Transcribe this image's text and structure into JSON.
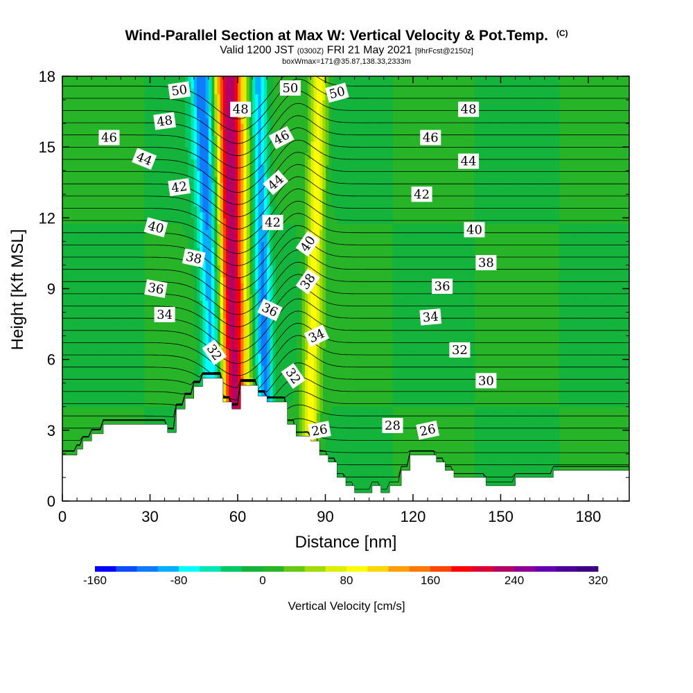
{
  "title": {
    "main": "Wind-Parallel Section at Max W: Vertical Velocity & Pot.Temp.",
    "copyright": "(C)",
    "valid_prefix": "Valid 1200 JST",
    "valid_zulu": "(0300Z)",
    "valid_date": "FRI 21 May 2021",
    "forecast": "[9hrFcst@2150z]",
    "boxwmax": "boxWmax=171@35.87,138.33,2333m"
  },
  "chart_data": {
    "type": "heatmap",
    "xlabel": "Distance [nm]",
    "ylabel": "Height [Kft MSL]",
    "xlim": [
      0,
      194
    ],
    "ylim": [
      0,
      18
    ],
    "x_ticks": [
      0,
      30,
      60,
      90,
      120,
      150,
      180
    ],
    "y_ticks": [
      0,
      3,
      6,
      9,
      12,
      15,
      18
    ],
    "colorbar": {
      "title": "Vertical Velocity [cm/s]",
      "min": -160,
      "max": 320,
      "step": 20,
      "tick_labels": [
        -160,
        -80,
        0,
        80,
        160,
        240,
        320
      ],
      "colors": [
        "#0000ff",
        "#0b4cff",
        "#0f7bff",
        "#00b0ff",
        "#00ffff",
        "#00e6b4",
        "#00c864",
        "#14b43c",
        "#28b428",
        "#64c814",
        "#a0dc00",
        "#dcf000",
        "#ffff00",
        "#ffd700",
        "#ffa000",
        "#ff7800",
        "#ff4600",
        "#ff0000",
        "#dc0032",
        "#b40064",
        "#8c0096",
        "#6400b4",
        "#4b0096",
        "#3c0082"
      ]
    },
    "terrain_kft": [
      [
        0,
        1.95
      ],
      [
        5,
        1.95
      ],
      [
        5,
        2.2
      ],
      [
        7,
        2.2
      ],
      [
        7,
        2.55
      ],
      [
        10,
        2.55
      ],
      [
        10,
        2.85
      ],
      [
        14,
        2.85
      ],
      [
        14,
        3.25
      ],
      [
        36,
        3.25
      ],
      [
        36,
        2.9
      ],
      [
        39,
        2.9
      ],
      [
        39,
        3.9
      ],
      [
        42,
        3.9
      ],
      [
        42,
        4.35
      ],
      [
        45,
        4.35
      ],
      [
        45,
        4.85
      ],
      [
        48,
        4.85
      ],
      [
        48,
        5.2
      ],
      [
        55,
        5.2
      ],
      [
        55,
        4.2
      ],
      [
        58,
        4.2
      ],
      [
        58,
        3.9
      ],
      [
        61,
        3.9
      ],
      [
        61,
        4.9
      ],
      [
        67,
        4.9
      ],
      [
        67,
        4.45
      ],
      [
        70,
        4.45
      ],
      [
        70,
        4.2
      ],
      [
        77,
        4.2
      ],
      [
        77,
        3.25
      ],
      [
        80,
        3.25
      ],
      [
        80,
        2.75
      ],
      [
        85,
        2.75
      ],
      [
        85,
        2.55
      ],
      [
        88,
        2.55
      ],
      [
        88,
        1.95
      ],
      [
        91,
        1.95
      ],
      [
        91,
        1.65
      ],
      [
        94,
        1.65
      ],
      [
        94,
        1.0
      ],
      [
        97,
        1.0
      ],
      [
        97,
        0.65
      ],
      [
        100,
        0.65
      ],
      [
        100,
        0.35
      ],
      [
        106,
        0.35
      ],
      [
        106,
        0.65
      ],
      [
        109,
        0.65
      ],
      [
        109,
        0.35
      ],
      [
        112,
        0.35
      ],
      [
        112,
        0.65
      ],
      [
        116,
        0.65
      ],
      [
        116,
        1.3
      ],
      [
        119,
        1.3
      ],
      [
        119,
        1.95
      ],
      [
        128,
        1.95
      ],
      [
        128,
        1.65
      ],
      [
        131,
        1.65
      ],
      [
        131,
        1.3
      ],
      [
        134,
        1.3
      ],
      [
        134,
        1.0
      ],
      [
        145,
        1.0
      ],
      [
        145,
        0.65
      ],
      [
        155,
        0.65
      ],
      [
        155,
        1.0
      ],
      [
        168,
        1.0
      ],
      [
        168,
        1.3
      ],
      [
        194,
        1.3
      ]
    ],
    "updraft_bands": [
      {
        "name": "downdraft-west",
        "w_cm_s": -120,
        "x_bottom": 54,
        "x_top": 48,
        "half_width": 4
      },
      {
        "name": "updraft-main",
        "w_cm_s": 240,
        "x_bottom": 59,
        "x_top": 57,
        "half_width": 5
      },
      {
        "name": "downdraft-east",
        "w_cm_s": -100,
        "x_bottom": 70,
        "x_top": 67,
        "half_width": 3
      },
      {
        "name": "updraft-east",
        "w_cm_s": 90,
        "x_bottom": 84,
        "x_top": 88,
        "half_width": 3
      }
    ],
    "theta_contours_c": [
      26,
      28,
      30,
      32,
      34,
      36,
      38,
      40,
      42,
      44,
      46,
      48,
      50
    ],
    "contour_labels": [
      {
        "text": "50",
        "x": 40,
        "y": 17.4,
        "rot": -8
      },
      {
        "text": "48",
        "x": 35,
        "y": 16.1,
        "rot": -8
      },
      {
        "text": "46",
        "x": 16,
        "y": 15.4,
        "rot": 0
      },
      {
        "text": "44",
        "x": 28,
        "y": 14.5,
        "rot": 22
      },
      {
        "text": "42",
        "x": 40,
        "y": 13.3,
        "rot": -8
      },
      {
        "text": "40",
        "x": 32,
        "y": 11.6,
        "rot": 15
      },
      {
        "text": "38",
        "x": 45,
        "y": 10.3,
        "rot": 12
      },
      {
        "text": "36",
        "x": 32,
        "y": 9.0,
        "rot": 10
      },
      {
        "text": "34",
        "x": 35,
        "y": 7.9,
        "rot": 0
      },
      {
        "text": "32",
        "x": 52,
        "y": 6.3,
        "rot": 55
      },
      {
        "text": "48",
        "x": 61,
        "y": 16.6,
        "rot": 0
      },
      {
        "text": "50",
        "x": 78,
        "y": 17.5,
        "rot": 0
      },
      {
        "text": "46",
        "x": 75,
        "y": 15.4,
        "rot": -28
      },
      {
        "text": "44",
        "x": 73,
        "y": 13.5,
        "rot": -42
      },
      {
        "text": "42",
        "x": 72,
        "y": 11.8,
        "rot": 0
      },
      {
        "text": "40",
        "x": 84,
        "y": 10.9,
        "rot": -55
      },
      {
        "text": "38",
        "x": 84,
        "y": 9.3,
        "rot": -55
      },
      {
        "text": "36",
        "x": 71,
        "y": 8.1,
        "rot": 25
      },
      {
        "text": "34",
        "x": 87,
        "y": 7.0,
        "rot": -25
      },
      {
        "text": "32",
        "x": 79,
        "y": 5.3,
        "rot": 55
      },
      {
        "text": "26",
        "x": 88,
        "y": 3.0,
        "rot": -10
      },
      {
        "text": "50",
        "x": 94,
        "y": 17.3,
        "rot": -15
      },
      {
        "text": "48",
        "x": 139,
        "y": 16.6,
        "rot": 0
      },
      {
        "text": "46",
        "x": 126,
        "y": 15.4,
        "rot": 0
      },
      {
        "text": "44",
        "x": 139,
        "y": 14.4,
        "rot": 0
      },
      {
        "text": "42",
        "x": 123,
        "y": 13.0,
        "rot": 0
      },
      {
        "text": "40",
        "x": 141,
        "y": 11.5,
        "rot": 0
      },
      {
        "text": "38",
        "x": 145,
        "y": 10.1,
        "rot": 0
      },
      {
        "text": "36",
        "x": 130,
        "y": 9.1,
        "rot": 0
      },
      {
        "text": "34",
        "x": 126,
        "y": 7.8,
        "rot": -5
      },
      {
        "text": "32",
        "x": 136,
        "y": 6.4,
        "rot": 0
      },
      {
        "text": "30",
        "x": 145,
        "y": 5.1,
        "rot": 0
      },
      {
        "text": "28",
        "x": 113,
        "y": 3.2,
        "rot": 0
      },
      {
        "text": "26",
        "x": 125,
        "y": 3.0,
        "rot": -12
      }
    ]
  }
}
